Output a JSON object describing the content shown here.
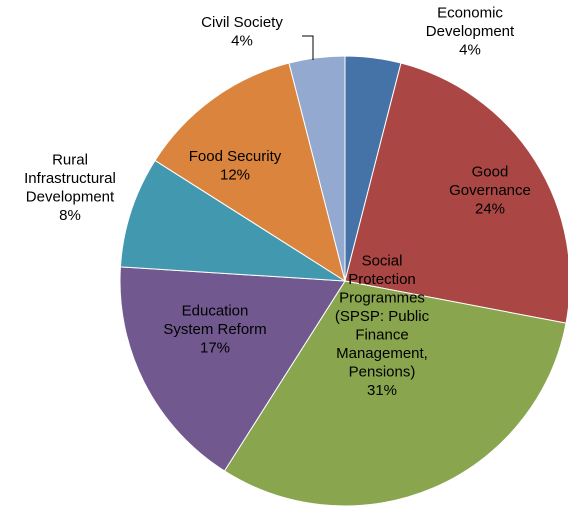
{
  "chart_data": {
    "type": "pie",
    "title": "",
    "slices": [
      {
        "name": "Economic Development",
        "value": 4,
        "label_lines": [
          "Economic",
          "Development"
        ],
        "percent_label": "4%",
        "color": "#4572A7"
      },
      {
        "name": "Good Governance",
        "value": 24,
        "label_lines": [
          "Good",
          "Governance"
        ],
        "percent_label": "24%",
        "color": "#AA4643"
      },
      {
        "name": "Social Protection Programmes (SPSP: Public Finance Management, Pensions)",
        "value": 31,
        "label_lines": [
          "Social",
          "Protection",
          "Programmes",
          "(SPSP: Public",
          "Finance",
          "Management,",
          "Pensions)"
        ],
        "percent_label": "31%",
        "color": "#89A54E"
      },
      {
        "name": "Education System Reform",
        "value": 17,
        "label_lines": [
          "Education",
          "System Reform"
        ],
        "percent_label": "17%",
        "color": "#71588F"
      },
      {
        "name": "Rural Infrastructural Development",
        "value": 8,
        "label_lines": [
          "Rural",
          "Infrastructural",
          "Development"
        ],
        "percent_label": "8%",
        "color": "#4198AF"
      },
      {
        "name": "Food Security",
        "value": 12,
        "label_lines": [
          "Food Security"
        ],
        "percent_label": "12%",
        "color": "#DB843D"
      },
      {
        "name": "Civil Society",
        "value": 4,
        "label_lines": [
          "Civil Society"
        ],
        "percent_label": "4%",
        "color": "#93A9CF"
      }
    ]
  }
}
